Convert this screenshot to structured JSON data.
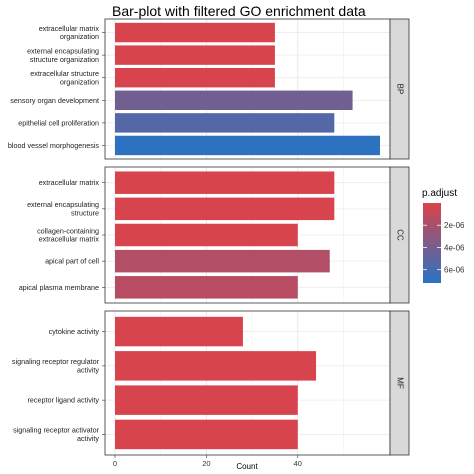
{
  "chart_data": {
    "type": "bar",
    "orientation": "horizontal",
    "title": "Bar-plot with filtered GO enrichment data",
    "xlabel": "Count",
    "xlim": [
      0,
      58
    ],
    "xticks": [
      0,
      20,
      40
    ],
    "grid": true,
    "panels": [
      {
        "name": "BP",
        "categories": [
          [
            "extracellular matrix",
            "organization"
          ],
          [
            "external encapsulating",
            "structure organization"
          ],
          [
            "extracellular structure",
            "organization"
          ],
          [
            "sensory organ development"
          ],
          [
            "epithelial cell proliferation"
          ],
          [
            "blood vessel morphogenesis"
          ]
        ],
        "values": [
          35,
          35,
          35,
          52,
          48,
          58
        ],
        "p_adjust": [
          1e-07,
          1e-07,
          1e-07,
          4.2e-06,
          5.4e-06,
          7e-06
        ]
      },
      {
        "name": "CC",
        "categories": [
          [
            "extracellular matrix"
          ],
          [
            "external encapsulating",
            "structure"
          ],
          [
            "collagen-containing",
            "extracellular matrix"
          ],
          [
            "apical part of cell"
          ],
          [
            "apical plasma membrane"
          ]
        ],
        "values": [
          48,
          48,
          40,
          47,
          40
        ],
        "p_adjust": [
          1e-07,
          1e-07,
          1e-07,
          1.6e-06,
          1.4e-06
        ]
      },
      {
        "name": "MF",
        "categories": [
          [
            "cytokine activity"
          ],
          [
            "signaling receptor regulator",
            "activity"
          ],
          [
            "receptor ligand activity"
          ],
          [
            "signaling receptor activator",
            "activity"
          ]
        ],
        "values": [
          28,
          44,
          40,
          40
        ],
        "p_adjust": [
          1e-07,
          1e-07,
          1e-07,
          1e-07
        ]
      }
    ],
    "legend": {
      "title": "p.adjust",
      "position": "right",
      "ticks": [
        {
          "label": "2e-06",
          "value": 2e-06
        },
        {
          "label": "4e-06",
          "value": 4e-06
        },
        {
          "label": "6e-06",
          "value": 6e-06
        }
      ],
      "range": [
        0,
        7.2e-06
      ],
      "low_color": "#d9434b",
      "high_color": "#2873c4"
    }
  }
}
